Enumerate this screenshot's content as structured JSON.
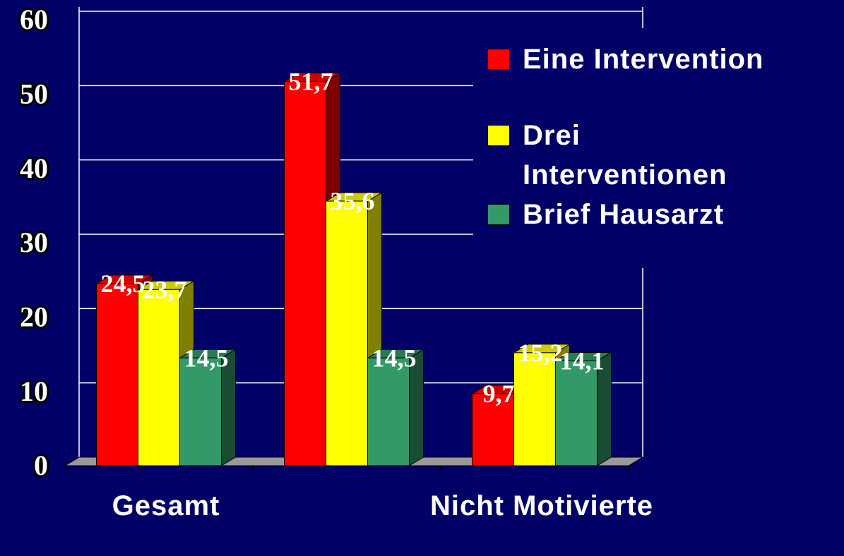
{
  "chart_data": {
    "type": "bar3d",
    "categories": [
      "Gesamt",
      null,
      "Nicht Motivierte"
    ],
    "series": [
      {
        "name": "Eine Intervention",
        "color": "#ff0000",
        "values": [
          24.5,
          51.7,
          9.7
        ],
        "value_labels": [
          "24,5",
          "51,7",
          "9,7"
        ]
      },
      {
        "name": "Drei Interventionen",
        "color": "#ffff00",
        "values": [
          23.7,
          35.6,
          15.2
        ],
        "value_labels": [
          "23,7",
          "35,6",
          "15,2"
        ]
      },
      {
        "name": "Brief Hausarzt",
        "color": "#339966",
        "values": [
          14.5,
          14.5,
          14.1
        ],
        "value_labels": [
          "14,5",
          "14,5",
          "14,1"
        ]
      }
    ],
    "ylim": [
      0,
      60
    ],
    "yticks": [
      0,
      10,
      20,
      30,
      40,
      50,
      60
    ],
    "grid": true,
    "legend": "upper right"
  }
}
